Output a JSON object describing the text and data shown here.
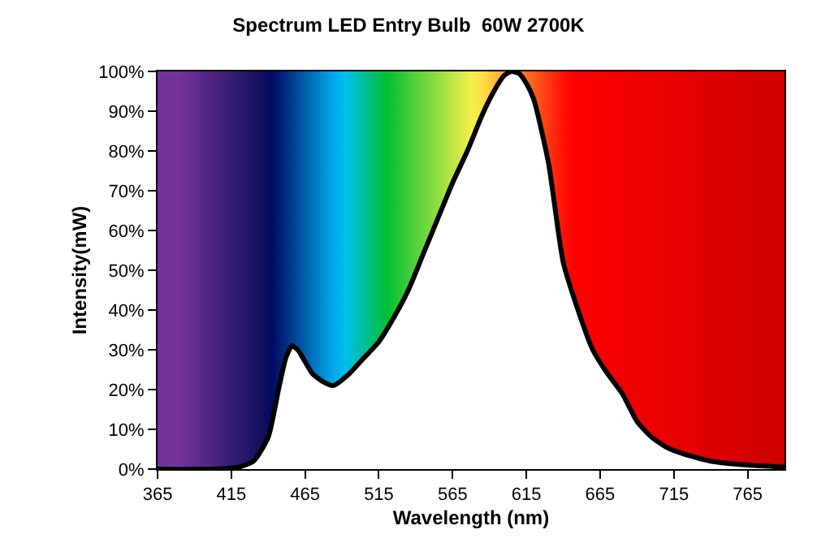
{
  "chart_data": {
    "type": "line",
    "title": "Spectrum LED Entry Bulb  60W 2700K",
    "xlabel": "Wavelength (nm)",
    "ylabel": "Intensity(mW)",
    "x": [
      365,
      400,
      420,
      430,
      440,
      447,
      452,
      456,
      460,
      465,
      470,
      477,
      484,
      495,
      505,
      515,
      525,
      535,
      545,
      555,
      565,
      575,
      585,
      593,
      600,
      605,
      610,
      615,
      620,
      630,
      640,
      650,
      660,
      670,
      680,
      690,
      700,
      710,
      720,
      740,
      765,
      790
    ],
    "series": [
      {
        "color": "#000000",
        "values": [
          0,
          0,
          0.5,
          2,
          8,
          20,
          28,
          31,
          30,
          27,
          24,
          22,
          21,
          24,
          28,
          32,
          38,
          45,
          54,
          63,
          72,
          80,
          89,
          95,
          99,
          100,
          99.5,
          97,
          93,
          77,
          52,
          40,
          30,
          24,
          19,
          12,
          8,
          5.5,
          4,
          2,
          1,
          0.5
        ]
      }
    ],
    "xlim": [
      365,
      790
    ],
    "xticks": [
      365,
      415,
      465,
      515,
      565,
      615,
      665,
      715,
      765
    ],
    "ylim": [
      0,
      100
    ],
    "yticks": [
      {
        "value": 0,
        "label": "0%"
      },
      {
        "value": 10,
        "label": "10%"
      },
      {
        "value": 20,
        "label": "20%"
      },
      {
        "value": 30,
        "label": "30%"
      },
      {
        "value": 40,
        "label": "40%"
      },
      {
        "value": 50,
        "label": "50%"
      },
      {
        "value": 60,
        "label": "60%"
      },
      {
        "value": 70,
        "label": "70%"
      },
      {
        "value": 80,
        "label": "80%"
      },
      {
        "value": 90,
        "label": "90%"
      },
      {
        "value": 100,
        "label": "100%"
      }
    ],
    "grid": false
  }
}
